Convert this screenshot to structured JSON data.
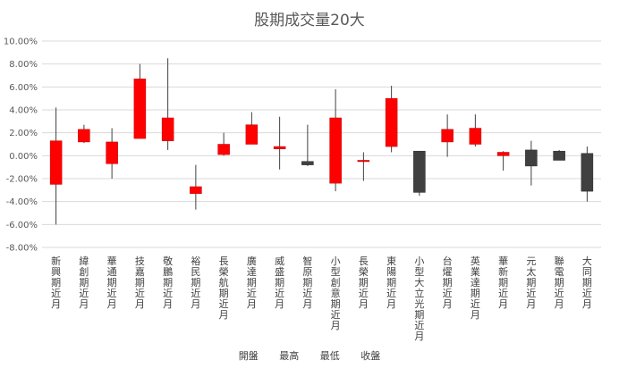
{
  "chart_data": {
    "type": "candlestick",
    "title": "股期成交量20大",
    "legend": [
      "開盤",
      "最高",
      "最低",
      "收盤"
    ],
    "legend_position": "bottom",
    "ylim": [
      -8,
      10
    ],
    "yticks": [
      -8,
      -6,
      -4,
      -2,
      0,
      2,
      4,
      6,
      8,
      10
    ],
    "ytick_labels": [
      "-8.00%",
      "-6.00%",
      "-4.00%",
      "-2.00%",
      "0.00%",
      "2.00%",
      "4.00%",
      "6.00%",
      "8.00%",
      "10.00%"
    ],
    "grid": true,
    "colors": {
      "up": "#ff0000",
      "down": "#404040",
      "wick": "#404040",
      "grid": "#d9d9d9",
      "axis_text": "#595959"
    },
    "categories": [
      "新興期近月",
      "緯創期近月",
      "華通期近月",
      "技嘉期近月",
      "敬鵬期近月",
      "裕民期近月",
      "長榮航期近月",
      "廣達期近月",
      "威盛期近月",
      "智原期近月",
      "小型創意期近月",
      "長榮期近月",
      "東陽期近月",
      "小型大立光期近月",
      "台燿期近月",
      "英業達期近月",
      "華新期近月",
      "元太期近月",
      "聯電期近月",
      "大同期近月"
    ],
    "series": [
      {
        "name": "開盤",
        "values": [
          -2.5,
          1.2,
          -0.7,
          1.5,
          1.3,
          -3.3,
          0.1,
          1.0,
          0.6,
          -0.5,
          -2.4,
          -0.5,
          0.8,
          0.4,
          1.2,
          1.0,
          0.0,
          0.5,
          0.4,
          0.2
        ]
      },
      {
        "name": "最高",
        "values": [
          4.2,
          2.7,
          2.4,
          8.0,
          8.5,
          -0.8,
          2.0,
          3.8,
          3.4,
          2.7,
          5.8,
          0.3,
          6.1,
          0.4,
          3.6,
          3.6,
          0.4,
          1.3,
          0.5,
          0.8
        ]
      },
      {
        "name": "最低",
        "values": [
          -6.0,
          1.1,
          -2.0,
          1.5,
          0.5,
          -4.7,
          0.0,
          1.0,
          -1.2,
          -0.9,
          -3.1,
          -2.2,
          0.3,
          -3.5,
          -0.1,
          0.8,
          -1.3,
          -2.6,
          -0.4,
          -4.0
        ]
      },
      {
        "name": "收盤",
        "values": [
          1.3,
          2.3,
          1.2,
          6.7,
          3.3,
          -2.7,
          1.0,
          2.7,
          0.8,
          -0.8,
          3.3,
          -0.4,
          5.0,
          -3.2,
          2.3,
          2.4,
          0.3,
          -0.9,
          -0.4,
          -3.1
        ]
      }
    ]
  }
}
